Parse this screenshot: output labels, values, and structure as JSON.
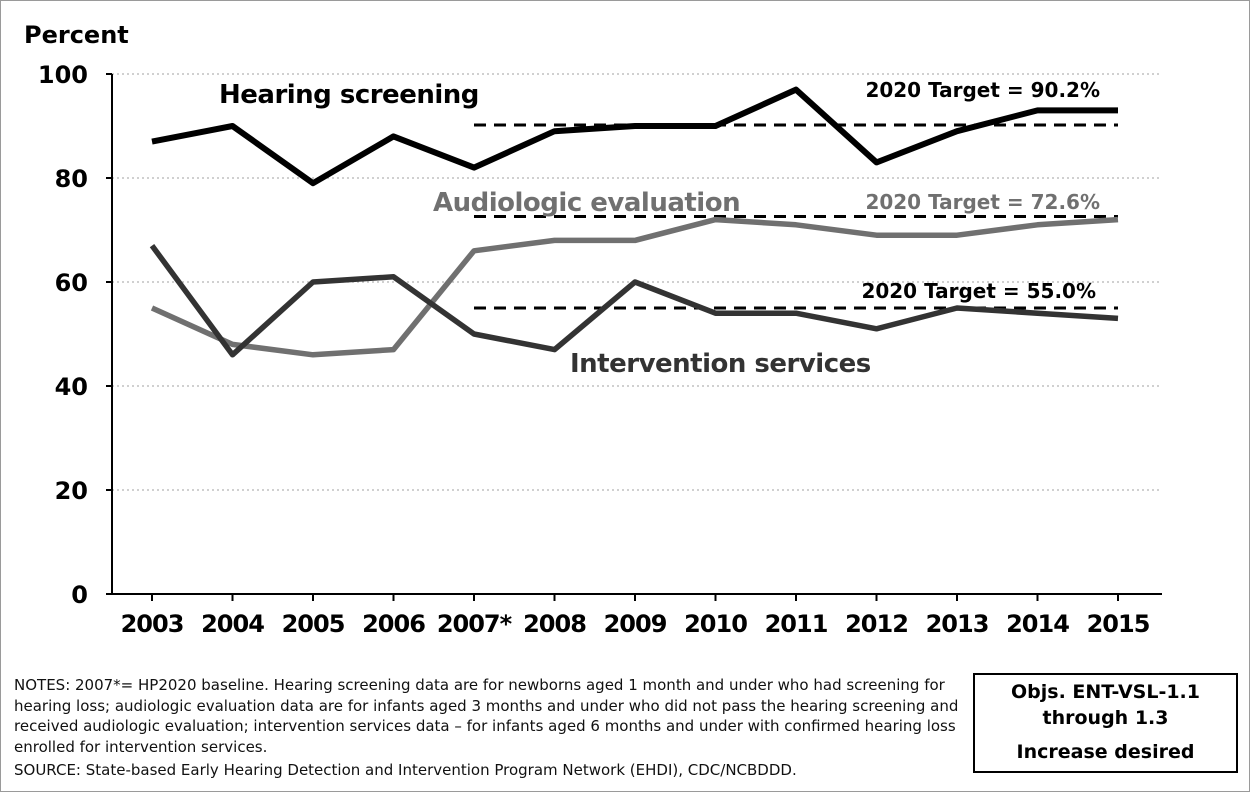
{
  "chart_data": {
    "type": "line",
    "ylabel": "Percent",
    "ylim": [
      0,
      100
    ],
    "yticks": [
      0,
      20,
      40,
      60,
      80,
      100
    ],
    "grid": "horizontal dotted",
    "categories": [
      "2003",
      "2004",
      "2005",
      "2006",
      "2007*",
      "2008",
      "2009",
      "2010",
      "2011",
      "2012",
      "2013",
      "2014",
      "2015"
    ],
    "series": [
      {
        "name": "Hearing screening",
        "color": "#000000",
        "values": [
          87,
          90,
          79,
          88,
          82,
          89,
          90,
          90,
          97,
          83,
          89,
          93,
          93
        ]
      },
      {
        "name": "Audiologic evaluation",
        "color": "#707070",
        "values": [
          55,
          48,
          46,
          47,
          66,
          68,
          68,
          72,
          71,
          69,
          69,
          71,
          72
        ]
      },
      {
        "name": "Intervention services",
        "color": "#333333",
        "values": [
          67,
          46,
          60,
          61,
          50,
          47,
          60,
          54,
          54,
          51,
          55,
          54,
          53
        ]
      }
    ],
    "targets": [
      {
        "label": "2020 Target = 90.2%",
        "value": 90.2,
        "from": "2007*",
        "to": "2015",
        "color": "#000000"
      },
      {
        "label": "2020 Target = 72.6%",
        "value": 72.6,
        "from": "2007*",
        "to": "2015",
        "color": "#707070"
      },
      {
        "label": "2020 Target = 55.0%",
        "value": 55.0,
        "from": "2007*",
        "to": "2015",
        "color": "#000000"
      }
    ]
  },
  "notes": "NOTES: 2007*= HP2020 baseline. Hearing screening data are for newborns aged 1 month and under who had screening for hearing loss; audiologic evaluation data are for infants aged 3 months and under who did not pass the hearing screening and received audiologic evaluation; intervention services data – for infants aged 6 months and under with confirmed hearing loss enrolled for intervention services.",
  "source": "SOURCE: State-based Early Hearing Detection and Intervention Program Network (EHDI), CDC/NCBDDD.",
  "objectives": {
    "line1": "Objs. ENT-VSL-1.1",
    "line2": "through 1.3",
    "line3": "Increase desired"
  }
}
